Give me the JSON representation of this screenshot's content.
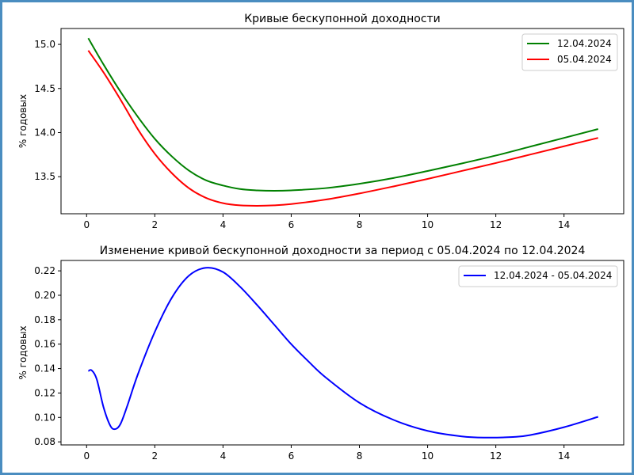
{
  "chart_data": [
    {
      "type": "line",
      "title": "Кривые бескупонной доходности",
      "xlabel": "",
      "ylabel": "% годовых",
      "xlim": [
        -0.75,
        15.75
      ],
      "ylim": [
        13.08,
        15.18
      ],
      "xticks": [
        0,
        2,
        4,
        6,
        8,
        10,
        12,
        14
      ],
      "xtick_labels": [
        "0",
        "2",
        "4",
        "6",
        "8",
        "10",
        "12",
        "14"
      ],
      "yticks": [
        13.5,
        14.0,
        14.5,
        15.0
      ],
      "ytick_labels": [
        "13.5",
        "14.0",
        "14.5",
        "15.0"
      ],
      "grid": false,
      "legend": "top-right",
      "series": [
        {
          "name": "12.04.2024",
          "color": "#008000",
          "x": [
            0.05,
            0.5,
            1,
            1.5,
            2,
            2.5,
            3,
            3.5,
            4,
            4.5,
            5,
            5.5,
            6,
            7,
            8,
            9,
            10,
            11,
            12,
            13,
            14,
            15
          ],
          "y": [
            15.07,
            14.77,
            14.46,
            14.18,
            13.93,
            13.73,
            13.57,
            13.46,
            13.4,
            13.36,
            13.345,
            13.34,
            13.345,
            13.37,
            13.42,
            13.485,
            13.565,
            13.65,
            13.74,
            13.84,
            13.94,
            14.04
          ]
        },
        {
          "name": "05.04.2024",
          "color": "#ff0000",
          "x": [
            0.05,
            0.5,
            1,
            1.5,
            2,
            2.5,
            3,
            3.5,
            4,
            4.5,
            5,
            5.5,
            6,
            7,
            8,
            9,
            10,
            11,
            12,
            13,
            14,
            15
          ],
          "y": [
            14.93,
            14.68,
            14.37,
            14.04,
            13.76,
            13.54,
            13.37,
            13.26,
            13.2,
            13.175,
            13.17,
            13.175,
            13.19,
            13.24,
            13.31,
            13.39,
            13.475,
            13.565,
            13.655,
            13.75,
            13.845,
            13.94
          ]
        }
      ]
    },
    {
      "type": "line",
      "title": "Изменение кривой бескупонной доходности за период с 05.04.2024 по 12.04.2024",
      "xlabel": "",
      "ylabel": "% годовых",
      "xlim": [
        -0.75,
        15.75
      ],
      "ylim": [
        0.0775,
        0.2285
      ],
      "xticks": [
        0,
        2,
        4,
        6,
        8,
        10,
        12,
        14
      ],
      "xtick_labels": [
        "0",
        "2",
        "4",
        "6",
        "8",
        "10",
        "12",
        "14"
      ],
      "yticks": [
        0.08,
        0.1,
        0.12,
        0.14,
        0.16,
        0.18,
        0.2,
        0.22
      ],
      "ytick_labels": [
        "0.08",
        "0.10",
        "0.12",
        "0.14",
        "0.16",
        "0.18",
        "0.20",
        "0.22"
      ],
      "grid": false,
      "legend": "top-right",
      "series": [
        {
          "name": "12.04.2024 - 05.04.2024",
          "color": "#0000ff",
          "x": [
            0.05,
            0.15,
            0.3,
            0.5,
            0.7,
            0.85,
            1.0,
            1.2,
            1.5,
            2.0,
            2.5,
            3.0,
            3.5,
            4.0,
            4.5,
            5.0,
            5.5,
            6.0,
            6.5,
            7.0,
            8.0,
            9.0,
            10.0,
            11.0,
            11.7,
            12.5,
            13.0,
            14.0,
            15.0
          ],
          "y": [
            0.138,
            0.1385,
            0.131,
            0.108,
            0.093,
            0.0905,
            0.095,
            0.11,
            0.135,
            0.17,
            0.198,
            0.216,
            0.2225,
            0.219,
            0.207,
            0.192,
            0.176,
            0.16,
            0.146,
            0.133,
            0.112,
            0.098,
            0.089,
            0.0845,
            0.0835,
            0.084,
            0.0855,
            0.092,
            0.1005
          ]
        }
      ]
    }
  ]
}
